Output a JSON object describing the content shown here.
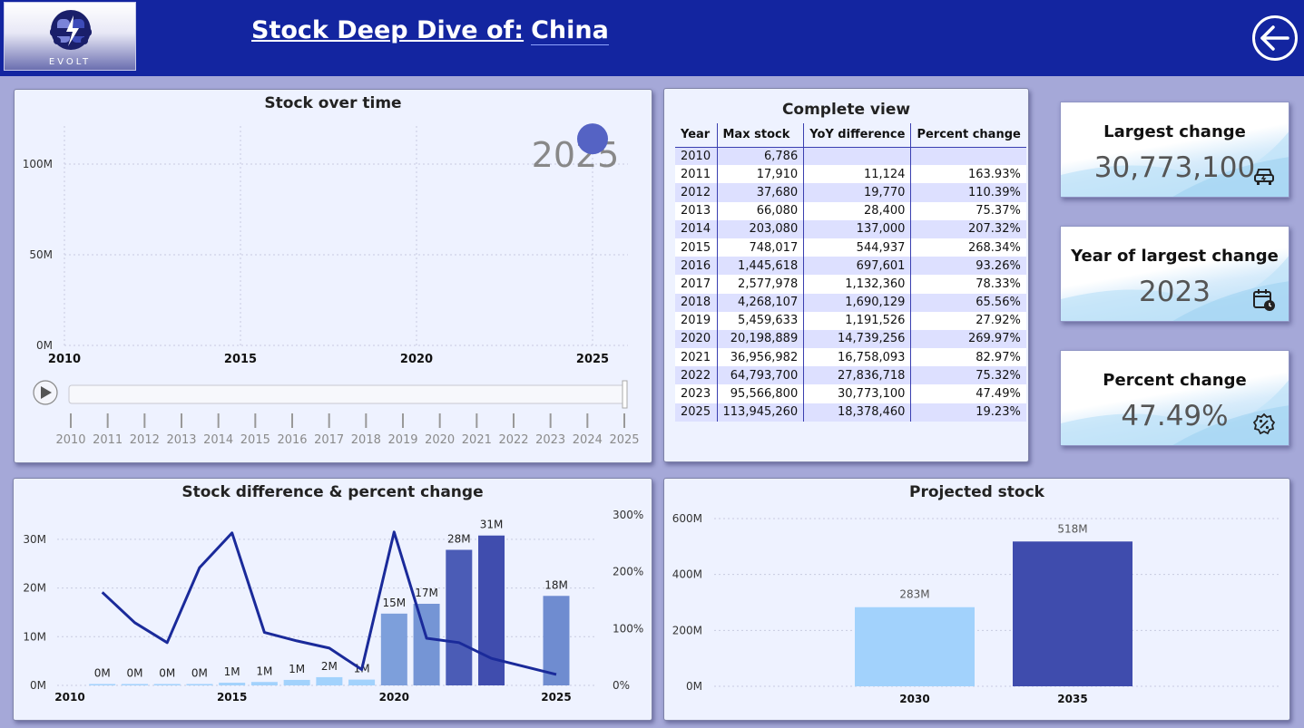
{
  "header": {
    "logo_text": "EVOLT",
    "title_prefix": "Stock Deep Dive of:",
    "title_country": "China",
    "back_icon": "back-arrow-icon"
  },
  "panels": {
    "stock_over_time": "Stock over time",
    "complete_view": "Complete view",
    "stock_diff": "Stock difference & percent change",
    "projected": "Projected stock"
  },
  "stock_over_time": {
    "current_year_label": "2025",
    "play_icon": "play-icon",
    "slider_years": [
      "2010",
      "2011",
      "2012",
      "2013",
      "2014",
      "2015",
      "2016",
      "2017",
      "2018",
      "2019",
      "2020",
      "2021",
      "2022",
      "2023",
      "2024",
      "2025"
    ],
    "slider_position_fraction": 1.0
  },
  "table": {
    "headers": [
      "Year",
      "Max stock",
      "YoY difference",
      "Percent change"
    ],
    "rows": [
      [
        "2010",
        "6,786",
        "",
        ""
      ],
      [
        "2011",
        "17,910",
        "11,124",
        "163.93%"
      ],
      [
        "2012",
        "37,680",
        "19,770",
        "110.39%"
      ],
      [
        "2013",
        "66,080",
        "28,400",
        "75.37%"
      ],
      [
        "2014",
        "203,080",
        "137,000",
        "207.32%"
      ],
      [
        "2015",
        "748,017",
        "544,937",
        "268.34%"
      ],
      [
        "2016",
        "1,445,618",
        "697,601",
        "93.26%"
      ],
      [
        "2017",
        "2,577,978",
        "1,132,360",
        "78.33%"
      ],
      [
        "2018",
        "4,268,107",
        "1,690,129",
        "65.56%"
      ],
      [
        "2019",
        "5,459,633",
        "1,191,526",
        "27.92%"
      ],
      [
        "2020",
        "20,198,889",
        "14,739,256",
        "269.97%"
      ],
      [
        "2021",
        "36,956,982",
        "16,758,093",
        "82.97%"
      ],
      [
        "2022",
        "64,793,700",
        "27,836,718",
        "75.32%"
      ],
      [
        "2023",
        "95,566,800",
        "30,773,100",
        "47.49%"
      ],
      [
        "2025",
        "113,945,260",
        "18,378,460",
        "19.23%"
      ]
    ]
  },
  "kpis": [
    {
      "label": "Largest change",
      "value": "30,773,100",
      "icon": "car-icon"
    },
    {
      "label": "Year of largest change",
      "value": "2023",
      "icon": "calendar-clock-icon"
    },
    {
      "label": "Percent change",
      "value": "47.49%",
      "icon": "percent-badge-icon"
    }
  ],
  "colors": {
    "header": "#1325a0",
    "line": "#1a2a9a",
    "bar_light": "#a2d2fc",
    "bar_dark": "#3f4cad",
    "bubble": "#5563c4"
  },
  "chart_data": [
    {
      "type": "scatter",
      "title": "Stock over time",
      "x_ticks": [
        "2010",
        "2015",
        "2020",
        "2025"
      ],
      "y_ticks": [
        "0M",
        "50M",
        "100M"
      ],
      "xlim": [
        2010,
        2025
      ],
      "ylim": [
        0,
        120000000
      ],
      "points": [
        {
          "x": 2025,
          "y": 113945260
        }
      ],
      "watermark": "2025",
      "grid": true
    },
    {
      "type": "bar",
      "title": "Stock difference & percent change",
      "x_ticks": [
        "2010",
        "2015",
        "2020",
        "2025"
      ],
      "y_ticks": [
        "0M",
        "10M",
        "20M",
        "30M"
      ],
      "y2_ticks": [
        "0%",
        "100%",
        "200%",
        "300%"
      ],
      "ylim": [
        0,
        35000000
      ],
      "y2lim": [
        0,
        300
      ],
      "bars": [
        {
          "x": 2011,
          "value": 11124,
          "label": "0M"
        },
        {
          "x": 2012,
          "value": 19770,
          "label": "0M"
        },
        {
          "x": 2013,
          "value": 28400,
          "label": "0M"
        },
        {
          "x": 2014,
          "value": 137000,
          "label": "0M"
        },
        {
          "x": 2015,
          "value": 544937,
          "label": "1M"
        },
        {
          "x": 2016,
          "value": 697601,
          "label": "1M"
        },
        {
          "x": 2017,
          "value": 1132360,
          "label": "1M"
        },
        {
          "x": 2018,
          "value": 1690129,
          "label": "2M"
        },
        {
          "x": 2019,
          "value": 1191526,
          "label": "1M"
        },
        {
          "x": 2020,
          "value": 14739256,
          "label": "15M"
        },
        {
          "x": 2021,
          "value": 16758093,
          "label": "17M"
        },
        {
          "x": 2022,
          "value": 27836718,
          "label": "28M"
        },
        {
          "x": 2023,
          "value": 30773100,
          "label": "31M"
        },
        {
          "x": 2025,
          "value": 18378460,
          "label": "18M"
        }
      ],
      "line": [
        {
          "x": 2011,
          "y": 163.93
        },
        {
          "x": 2012,
          "y": 110.39
        },
        {
          "x": 2013,
          "y": 75.37
        },
        {
          "x": 2014,
          "y": 207.32
        },
        {
          "x": 2015,
          "y": 268.34
        },
        {
          "x": 2016,
          "y": 93.26
        },
        {
          "x": 2017,
          "y": 78.33
        },
        {
          "x": 2018,
          "y": 65.56
        },
        {
          "x": 2019,
          "y": 27.92
        },
        {
          "x": 2020,
          "y": 269.97
        },
        {
          "x": 2021,
          "y": 82.97
        },
        {
          "x": 2022,
          "y": 75.32
        },
        {
          "x": 2023,
          "y": 47.49
        },
        {
          "x": 2025,
          "y": 19.23
        }
      ],
      "grid": true
    },
    {
      "type": "bar",
      "title": "Projected stock",
      "categories": [
        "2030",
        "2035"
      ],
      "values": [
        283000000,
        518000000
      ],
      "labels": [
        "283M",
        "518M"
      ],
      "y_ticks": [
        "0M",
        "200M",
        "400M",
        "600M"
      ],
      "ylim": [
        0,
        600000000
      ],
      "grid": true
    }
  ]
}
